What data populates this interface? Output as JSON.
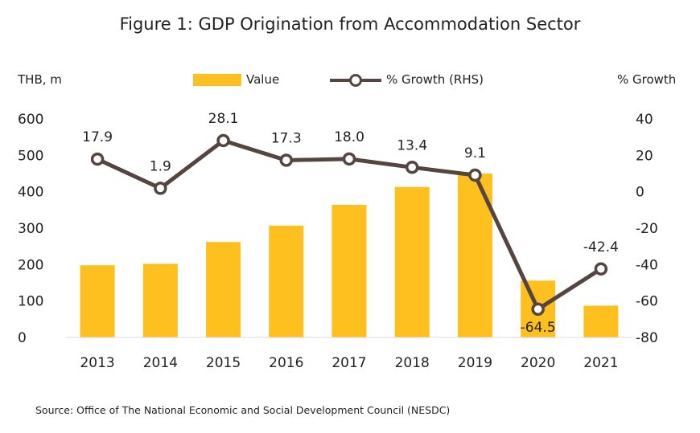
{
  "chart_data": {
    "type": "bar+line",
    "title": "Figure 1: GDP Origination from Accommodation Sector",
    "source": "Source: Office of The National Economic and Social Development Council (NESDC)",
    "left_axis_label": "THB, m",
    "right_axis_label": "% Growth",
    "categories": [
      "2013",
      "2014",
      "2015",
      "2016",
      "2017",
      "2018",
      "2019",
      "2020",
      "2021"
    ],
    "series": [
      {
        "name": "Value",
        "type": "bar",
        "axis": "left",
        "color": "#FDC01F",
        "values": [
          198,
          202,
          262,
          307,
          364,
          413,
          450,
          156,
          87
        ]
      },
      {
        "name": "% Growth (RHS)",
        "type": "line",
        "axis": "right",
        "color": "#56453F",
        "values": [
          17.9,
          1.9,
          28.1,
          17.3,
          18.0,
          13.4,
          9.1,
          -64.5,
          -42.4
        ],
        "labels": [
          "17.9",
          "1.9",
          "28.1",
          "17.3",
          "18.0",
          "13.4",
          "9.1",
          "-64.5",
          "-42.4"
        ]
      }
    ],
    "ylim_left": [
      0,
      600
    ],
    "yticks_left": [
      "0",
      "100",
      "200",
      "300",
      "400",
      "500",
      "600"
    ],
    "ylim_right": [
      -80,
      40
    ],
    "yticks_right": [
      "-80",
      "-60",
      "-40",
      "-20",
      "0",
      "20",
      "40"
    ],
    "legend_position": "top-center",
    "grid": false
  }
}
